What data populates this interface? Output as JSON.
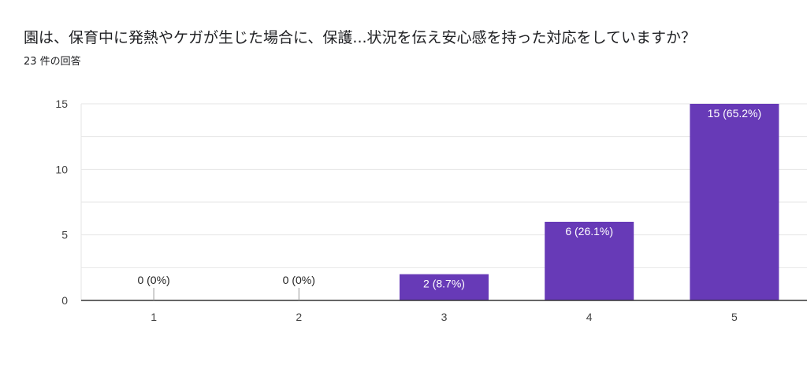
{
  "question": {
    "title": "園は、保育中に発熱やケガが生じた場合に、保護...状況を伝え安心感を持った対応をしていますか？",
    "response_count": "23 件の回答"
  },
  "colors": {
    "bar": "#673ab7",
    "gridline": "#e6e6e6",
    "axis": "#333333",
    "tick_mark": "#999999"
  },
  "chart_data": {
    "type": "bar",
    "title": "",
    "xlabel": "",
    "ylabel": "",
    "categories": [
      "1",
      "2",
      "3",
      "4",
      "5"
    ],
    "values": [
      0,
      0,
      2,
      6,
      15
    ],
    "data_labels": [
      "0 (0%)",
      "0 (0%)",
      "2 (8.7%)",
      "6 (26.1%)",
      "15 (65.2%)"
    ],
    "ylim": [
      0,
      15
    ],
    "yticks": [
      0,
      5,
      10,
      15
    ],
    "grid": true,
    "legend": "none"
  }
}
